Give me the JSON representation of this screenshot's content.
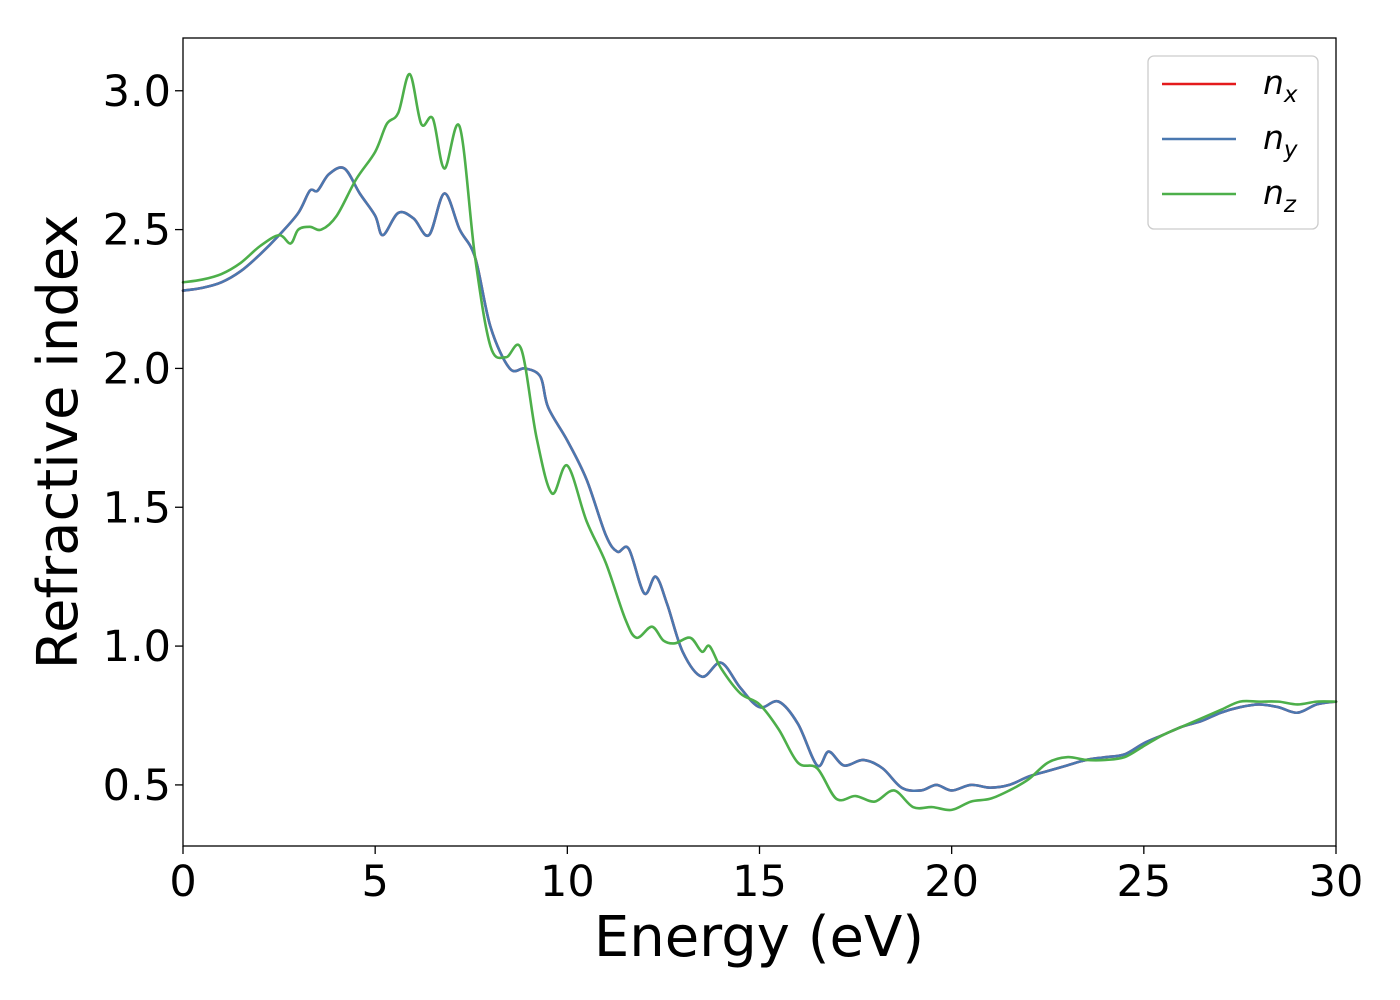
{
  "chart_data": {
    "type": "line",
    "xlabel": "Energy (eV)",
    "ylabel": "Refractive index",
    "xlim": [
      0,
      30
    ],
    "ylim": [
      0.28,
      3.19
    ],
    "xticks": [
      "0",
      "5",
      "10",
      "15",
      "20",
      "25",
      "30"
    ],
    "yticks": [
      "0.5",
      "1.0",
      "1.5",
      "2.0",
      "2.5",
      "3.0"
    ],
    "grid": false,
    "legend_position": "top-right",
    "series": [
      {
        "name": "n_x",
        "label_base": "n",
        "label_sub": "x",
        "color": "#e41a1c",
        "x": [
          0,
          0.5,
          1,
          1.5,
          2,
          2.5,
          3,
          3.3,
          3.5,
          3.8,
          4.2,
          4.6,
          5,
          5.2,
          5.6,
          6,
          6.4,
          6.8,
          7.2,
          7.6,
          8,
          8.5,
          8.9,
          9.3,
          9.5,
          10,
          10.5,
          11,
          11.3,
          11.6,
          12,
          12.3,
          12.6,
          13,
          13.5,
          14,
          14.5,
          15,
          15.5,
          16,
          16.5,
          16.8,
          17.2,
          17.7,
          18.2,
          18.7,
          19.2,
          19.6,
          20,
          20.5,
          21,
          21.5,
          22,
          22.5,
          23,
          23.5,
          24,
          24.5,
          25,
          25.5,
          26,
          26.5,
          27,
          27.5,
          28,
          28.5,
          29,
          29.5,
          30
        ],
        "y": [
          2.28,
          2.29,
          2.31,
          2.35,
          2.41,
          2.48,
          2.56,
          2.64,
          2.64,
          2.7,
          2.72,
          2.63,
          2.55,
          2.48,
          2.56,
          2.54,
          2.48,
          2.63,
          2.5,
          2.4,
          2.15,
          2.0,
          2.0,
          1.97,
          1.86,
          1.74,
          1.6,
          1.4,
          1.34,
          1.35,
          1.19,
          1.25,
          1.15,
          0.98,
          0.89,
          0.94,
          0.85,
          0.78,
          0.8,
          0.72,
          0.57,
          0.62,
          0.57,
          0.59,
          0.56,
          0.49,
          0.48,
          0.5,
          0.48,
          0.5,
          0.49,
          0.5,
          0.53,
          0.55,
          0.57,
          0.59,
          0.6,
          0.61,
          0.65,
          0.68,
          0.71,
          0.73,
          0.76,
          0.78,
          0.79,
          0.78,
          0.76,
          0.79,
          0.8
        ]
      },
      {
        "name": "n_y",
        "label_base": "n",
        "label_sub": "y",
        "color": "#4a78b0",
        "x": [
          0,
          0.5,
          1,
          1.5,
          2,
          2.5,
          3,
          3.3,
          3.5,
          3.8,
          4.2,
          4.6,
          5,
          5.2,
          5.6,
          6,
          6.4,
          6.8,
          7.2,
          7.6,
          8,
          8.5,
          8.9,
          9.3,
          9.5,
          10,
          10.5,
          11,
          11.3,
          11.6,
          12,
          12.3,
          12.6,
          13,
          13.5,
          14,
          14.5,
          15,
          15.5,
          16,
          16.5,
          16.8,
          17.2,
          17.7,
          18.2,
          18.7,
          19.2,
          19.6,
          20,
          20.5,
          21,
          21.5,
          22,
          22.5,
          23,
          23.5,
          24,
          24.5,
          25,
          25.5,
          26,
          26.5,
          27,
          27.5,
          28,
          28.5,
          29,
          29.5,
          30
        ],
        "y": [
          2.28,
          2.29,
          2.31,
          2.35,
          2.41,
          2.48,
          2.56,
          2.64,
          2.64,
          2.7,
          2.72,
          2.63,
          2.55,
          2.48,
          2.56,
          2.54,
          2.48,
          2.63,
          2.5,
          2.4,
          2.15,
          2.0,
          2.0,
          1.97,
          1.86,
          1.74,
          1.6,
          1.4,
          1.34,
          1.35,
          1.19,
          1.25,
          1.15,
          0.98,
          0.89,
          0.94,
          0.85,
          0.78,
          0.8,
          0.72,
          0.57,
          0.62,
          0.57,
          0.59,
          0.56,
          0.49,
          0.48,
          0.5,
          0.48,
          0.5,
          0.49,
          0.5,
          0.53,
          0.55,
          0.57,
          0.59,
          0.6,
          0.61,
          0.65,
          0.68,
          0.71,
          0.73,
          0.76,
          0.78,
          0.79,
          0.78,
          0.76,
          0.79,
          0.8
        ]
      },
      {
        "name": "n_z",
        "label_base": "n",
        "label_sub": "z",
        "color": "#4daf4a",
        "x": [
          0,
          0.5,
          1,
          1.5,
          2,
          2.5,
          2.8,
          3,
          3.3,
          3.6,
          4,
          4.5,
          5,
          5.3,
          5.6,
          5.9,
          6.2,
          6.5,
          6.8,
          7.2,
          7.6,
          8,
          8.4,
          8.8,
          9.2,
          9.6,
          10,
          10.5,
          11,
          11.5,
          11.8,
          12.2,
          12.5,
          12.8,
          13.2,
          13.5,
          13.7,
          14,
          14.5,
          15,
          15.5,
          16,
          16.5,
          17,
          17.5,
          18,
          18.5,
          19,
          19.5,
          20,
          20.5,
          21,
          21.5,
          22,
          22.5,
          23,
          23.5,
          24,
          24.5,
          25,
          25.5,
          26,
          26.5,
          27,
          27.5,
          28,
          28.5,
          29,
          29.5,
          30
        ],
        "y": [
          2.31,
          2.32,
          2.34,
          2.38,
          2.44,
          2.48,
          2.45,
          2.5,
          2.51,
          2.5,
          2.55,
          2.68,
          2.78,
          2.88,
          2.92,
          3.06,
          2.88,
          2.9,
          2.72,
          2.87,
          2.4,
          2.08,
          2.04,
          2.07,
          1.75,
          1.55,
          1.65,
          1.45,
          1.3,
          1.1,
          1.03,
          1.07,
          1.02,
          1.01,
          1.03,
          0.98,
          1.0,
          0.92,
          0.83,
          0.79,
          0.7,
          0.58,
          0.56,
          0.45,
          0.46,
          0.44,
          0.48,
          0.42,
          0.42,
          0.41,
          0.44,
          0.45,
          0.48,
          0.52,
          0.58,
          0.6,
          0.59,
          0.59,
          0.6,
          0.64,
          0.68,
          0.71,
          0.74,
          0.77,
          0.8,
          0.8,
          0.8,
          0.79,
          0.8,
          0.8
        ]
      }
    ]
  }
}
